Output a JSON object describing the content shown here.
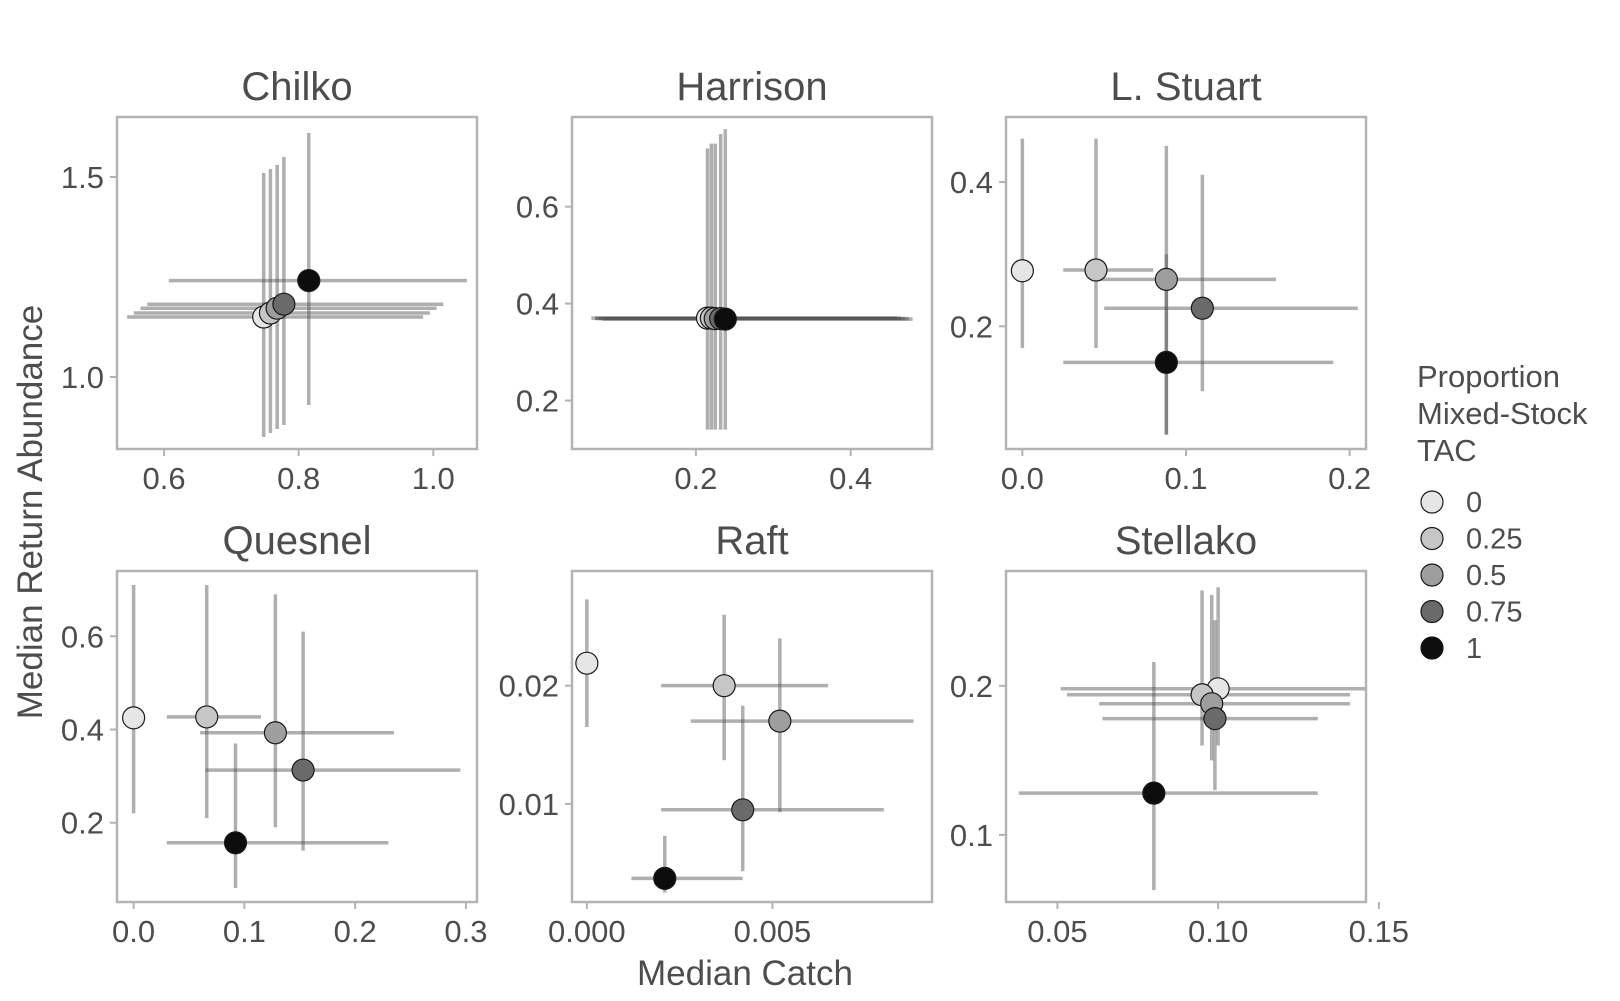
{
  "chart_data": {
    "type": "scatter",
    "xlabel": "Median Catch",
    "ylabel": "Median Return Abundance",
    "legend": {
      "title_lines": [
        "Proportion",
        "Mixed-Stock",
        "TAC"
      ],
      "placement": "right",
      "entries": [
        {
          "label": "0",
          "level": 0,
          "fill": "#e6e6e6"
        },
        {
          "label": "0.25",
          "level": 0.25,
          "fill": "#c6c6c6"
        },
        {
          "label": "0.5",
          "level": 0.5,
          "fill": "#9e9e9e"
        },
        {
          "label": "0.75",
          "level": 0.75,
          "fill": "#6a6a6a"
        },
        {
          "label": "1",
          "level": 1,
          "fill": "#0d0d0d"
        }
      ]
    },
    "panels": [
      {
        "title": "Chilko",
        "xlim": [
          0.53,
          1.065
        ],
        "ylim": [
          0.82,
          1.65
        ],
        "xticks": [
          0.6,
          0.8,
          1.0
        ],
        "xtick_labels": [
          "0.6",
          "0.8",
          "1.0"
        ],
        "yticks": [
          1.0,
          1.5
        ],
        "ytick_labels": [
          "1.0",
          "1.5"
        ],
        "points": [
          {
            "level": 0,
            "x": 0.748,
            "y": 1.15,
            "xlo": 0.545,
            "xhi": 0.985,
            "ylo": 0.85,
            "yhi": 1.51
          },
          {
            "level": 0.25,
            "x": 0.758,
            "y": 1.16,
            "xlo": 0.555,
            "xhi": 0.995,
            "ylo": 0.86,
            "yhi": 1.52
          },
          {
            "level": 0.5,
            "x": 0.768,
            "y": 1.172,
            "xlo": 0.565,
            "xhi": 1.005,
            "ylo": 0.87,
            "yhi": 1.53
          },
          {
            "level": 0.75,
            "x": 0.778,
            "y": 1.182,
            "xlo": 0.575,
            "xhi": 1.015,
            "ylo": 0.88,
            "yhi": 1.55
          },
          {
            "level": 1,
            "x": 0.815,
            "y": 1.241,
            "xlo": 0.607,
            "xhi": 1.05,
            "ylo": 0.93,
            "yhi": 1.61
          }
        ]
      },
      {
        "title": "Harrison",
        "xlim": [
          0.04,
          0.505
        ],
        "ylim": [
          0.1,
          0.785
        ],
        "xticks": [
          0.2,
          0.4
        ],
        "xtick_labels": [
          "0.2",
          "0.4"
        ],
        "yticks": [
          0.2,
          0.4,
          0.6
        ],
        "ytick_labels": [
          "0.2",
          "0.4",
          "0.6"
        ],
        "points": [
          {
            "level": 0,
            "x": 0.215,
            "y": 0.37,
            "xlo": 0.065,
            "xhi": 0.46,
            "ylo": 0.14,
            "yhi": 0.72
          },
          {
            "level": 0.25,
            "x": 0.22,
            "y": 0.37,
            "xlo": 0.07,
            "xhi": 0.465,
            "ylo": 0.14,
            "yhi": 0.73
          },
          {
            "level": 0.5,
            "x": 0.225,
            "y": 0.369,
            "xlo": 0.07,
            "xhi": 0.47,
            "ylo": 0.14,
            "yhi": 0.73
          },
          {
            "level": 0.75,
            "x": 0.232,
            "y": 0.369,
            "xlo": 0.075,
            "xhi": 0.475,
            "ylo": 0.14,
            "yhi": 0.75
          },
          {
            "level": 1,
            "x": 0.238,
            "y": 0.368,
            "xlo": 0.08,
            "xhi": 0.48,
            "ylo": 0.14,
            "yhi": 0.76
          }
        ]
      },
      {
        "title": "L. Stuart",
        "xlim": [
          -0.01,
          0.21
        ],
        "ylim": [
          0.03,
          0.49
        ],
        "xticks": [
          0.0,
          0.1,
          0.2
        ],
        "xtick_labels": [
          "0.0",
          "0.1",
          "0.2"
        ],
        "yticks": [
          0.2,
          0.4
        ],
        "ytick_labels": [
          "0.2",
          "0.4"
        ],
        "points": [
          {
            "level": 0,
            "x": 0.0,
            "y": 0.277,
            "xlo": 0.0,
            "xhi": 0.0,
            "ylo": 0.17,
            "yhi": 0.46
          },
          {
            "level": 0.25,
            "x": 0.045,
            "y": 0.278,
            "xlo": 0.025,
            "xhi": 0.08,
            "ylo": 0.17,
            "yhi": 0.46
          },
          {
            "level": 0.5,
            "x": 0.088,
            "y": 0.265,
            "xlo": 0.045,
            "xhi": 0.155,
            "ylo": 0.05,
            "yhi": 0.45
          },
          {
            "level": 0.75,
            "x": 0.11,
            "y": 0.225,
            "xlo": 0.05,
            "xhi": 0.205,
            "ylo": 0.11,
            "yhi": 0.41
          },
          {
            "level": 1,
            "x": 0.088,
            "y": 0.15,
            "xlo": 0.025,
            "xhi": 0.19,
            "ylo": 0.05,
            "yhi": 0.3
          }
        ]
      },
      {
        "title": "Quesnel",
        "xlim": [
          -0.015,
          0.31
        ],
        "ylim": [
          0.03,
          0.74
        ],
        "xticks": [
          0.0,
          0.1,
          0.2,
          0.3
        ],
        "xtick_labels": [
          "0.0",
          "0.1",
          "0.2",
          "0.3"
        ],
        "yticks": [
          0.2,
          0.4,
          0.6
        ],
        "ytick_labels": [
          "0.2",
          "0.4",
          "0.6"
        ],
        "points": [
          {
            "level": 0,
            "x": 0.0,
            "y": 0.425,
            "xlo": 0.0,
            "xhi": 0.0,
            "ylo": 0.22,
            "yhi": 0.71
          },
          {
            "level": 0.25,
            "x": 0.066,
            "y": 0.427,
            "xlo": 0.03,
            "xhi": 0.115,
            "ylo": 0.21,
            "yhi": 0.71
          },
          {
            "level": 0.5,
            "x": 0.128,
            "y": 0.393,
            "xlo": 0.06,
            "xhi": 0.235,
            "ylo": 0.19,
            "yhi": 0.69
          },
          {
            "level": 0.75,
            "x": 0.153,
            "y": 0.313,
            "xlo": 0.065,
            "xhi": 0.295,
            "ylo": 0.14,
            "yhi": 0.61
          },
          {
            "level": 1,
            "x": 0.092,
            "y": 0.157,
            "xlo": 0.03,
            "xhi": 0.23,
            "ylo": 0.06,
            "yhi": 0.37
          }
        ]
      },
      {
        "title": "Raft",
        "xlim": [
          -0.0004,
          0.0093
        ],
        "ylim": [
          0.0017,
          0.0297
        ],
        "xticks": [
          0.0,
          0.005
        ],
        "xtick_labels": [
          "0.000",
          "0.005"
        ],
        "yticks": [
          0.01,
          0.02
        ],
        "ytick_labels": [
          "0.01",
          "0.02"
        ],
        "points": [
          {
            "level": 0,
            "x": 0.0,
            "y": 0.0219,
            "xlo": 0.0,
            "xhi": 0.0,
            "ylo": 0.0165,
            "yhi": 0.0273
          },
          {
            "level": 0.25,
            "x": 0.0037,
            "y": 0.02,
            "xlo": 0.002,
            "xhi": 0.0065,
            "ylo": 0.0137,
            "yhi": 0.026
          },
          {
            "level": 0.5,
            "x": 0.0052,
            "y": 0.017,
            "xlo": 0.0028,
            "xhi": 0.0088,
            "ylo": 0.0093,
            "yhi": 0.024
          },
          {
            "level": 0.75,
            "x": 0.0042,
            "y": 0.0095,
            "xlo": 0.002,
            "xhi": 0.008,
            "ylo": 0.0043,
            "yhi": 0.0183
          },
          {
            "level": 1,
            "x": 0.0021,
            "y": 0.0037,
            "xlo": 0.0012,
            "xhi": 0.0042,
            "ylo": 0.0025,
            "yhi": 0.0073
          }
        ]
      },
      {
        "title": "Stellako",
        "xlim": [
          0.034,
          0.146
        ],
        "ylim": [
          0.055,
          0.277
        ],
        "xticks": [
          0.05,
          0.1,
          0.15
        ],
        "xtick_labels": [
          "0.05",
          "0.10",
          "0.15"
        ],
        "yticks": [
          0.1,
          0.2
        ],
        "ytick_labels": [
          "0.1",
          "0.2"
        ],
        "points": [
          {
            "level": 0,
            "x": 0.1,
            "y": 0.198,
            "xlo": 0.051,
            "xhi": 0.146,
            "ylo": 0.16,
            "yhi": 0.266
          },
          {
            "level": 0.25,
            "x": 0.095,
            "y": 0.194,
            "xlo": 0.053,
            "xhi": 0.141,
            "ylo": 0.16,
            "yhi": 0.264
          },
          {
            "level": 0.5,
            "x": 0.098,
            "y": 0.188,
            "xlo": 0.063,
            "xhi": 0.141,
            "ylo": 0.15,
            "yhi": 0.261
          },
          {
            "level": 0.75,
            "x": 0.099,
            "y": 0.178,
            "xlo": 0.064,
            "xhi": 0.131,
            "ylo": 0.13,
            "yhi": 0.244
          },
          {
            "level": 1,
            "x": 0.08,
            "y": 0.128,
            "xlo": 0.038,
            "xhi": 0.131,
            "ylo": 0.063,
            "yhi": 0.216
          }
        ]
      }
    ]
  }
}
